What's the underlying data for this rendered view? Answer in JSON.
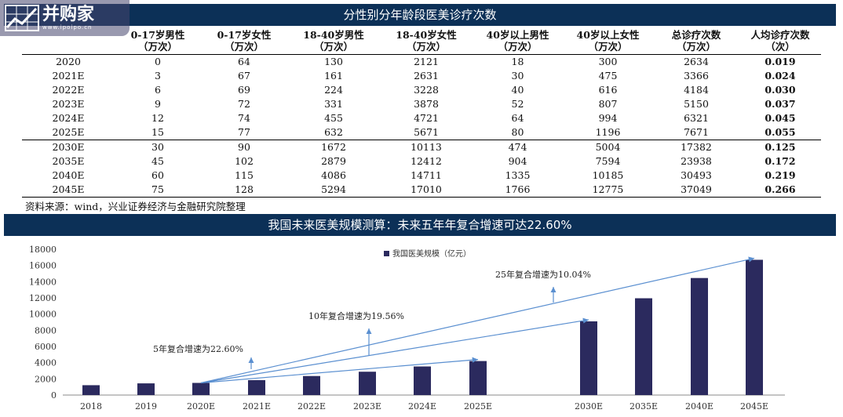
{
  "watermark": {
    "name": "并购家",
    "url": "www.ipoipo.cn"
  },
  "table_title": "分性别分年龄段医美诊疗次数",
  "table": {
    "headers": [
      {
        "line1": "",
        "line2": ""
      },
      {
        "line1": "0-17岁男性",
        "line2": "（万次）"
      },
      {
        "line1": "0-17岁女性",
        "line2": "（万次）"
      },
      {
        "line1": "18-40岁男性",
        "line2": "（万次）"
      },
      {
        "line1": "18-40岁女性",
        "line2": "（万次）"
      },
      {
        "line1": "40岁以上男性",
        "line2": "（万次）"
      },
      {
        "line1": "40岁以上女性",
        "line2": "（万次）"
      },
      {
        "line1": "总诊疗次数",
        "line2": "（万次）"
      },
      {
        "line1": "人均诊疗次数",
        "line2": "（次）"
      }
    ],
    "rows": [
      [
        "2020",
        "0",
        "64",
        "130",
        "2121",
        "18",
        "300",
        "2634",
        "0.019"
      ],
      [
        "2021E",
        "3",
        "67",
        "161",
        "2631",
        "30",
        "475",
        "3366",
        "0.024"
      ],
      [
        "2022E",
        "6",
        "69",
        "224",
        "3228",
        "40",
        "616",
        "4184",
        "0.030"
      ],
      [
        "2023E",
        "9",
        "72",
        "331",
        "3878",
        "52",
        "807",
        "5150",
        "0.037"
      ],
      [
        "2024E",
        "12",
        "74",
        "455",
        "4721",
        "64",
        "994",
        "6321",
        "0.045"
      ],
      [
        "2025E",
        "15",
        "77",
        "632",
        "5671",
        "80",
        "1196",
        "7671",
        "0.055"
      ],
      [
        "2030E",
        "30",
        "90",
        "1672",
        "10113",
        "474",
        "5004",
        "17382",
        "0.125"
      ],
      [
        "2035E",
        "45",
        "102",
        "2879",
        "12412",
        "904",
        "7594",
        "23938",
        "0.172"
      ],
      [
        "2040E",
        "60",
        "115",
        "4086",
        "14711",
        "1335",
        "10185",
        "30493",
        "0.219"
      ],
      [
        "2045E",
        "75",
        "128",
        "5294",
        "17010",
        "1766",
        "12775",
        "37049",
        "0.266"
      ]
    ]
  },
  "source": "资料来源：wind，兴业证券经济与金融研究院整理",
  "chart_title": "我国未来医美规模测算：未来五年年复合增速可达22.60%",
  "chart_data": {
    "type": "bar",
    "categories": [
      "2018",
      "2019",
      "2020E",
      "2021E",
      "2022E",
      "2023E",
      "2024E",
      "2025E",
      "2030E",
      "2035E",
      "2040E",
      "2045E"
    ],
    "series": [
      {
        "name": "我国医美规模（亿元）",
        "values": [
          1217,
          1443,
          1500,
          1840,
          2350,
          2880,
          3530,
          4200,
          9100,
          11950,
          14450,
          16700
        ]
      }
    ],
    "ylim": [
      0,
      18000
    ],
    "yticks": [
      0,
      2000,
      4000,
      6000,
      8000,
      10000,
      12000,
      14000,
      16000,
      18000
    ],
    "bar_color": "#2b2a5e",
    "legend_position": "top-center",
    "annotations": [
      {
        "text": "5年复合增速为22.60%",
        "from": "2020E",
        "to": "2025E"
      },
      {
        "text": "10年复合增速为19.56%",
        "from": "2020E",
        "to": "2030E"
      },
      {
        "text": "25年复合增速为10.04%",
        "from": "2020E",
        "to": "2045E"
      }
    ]
  }
}
